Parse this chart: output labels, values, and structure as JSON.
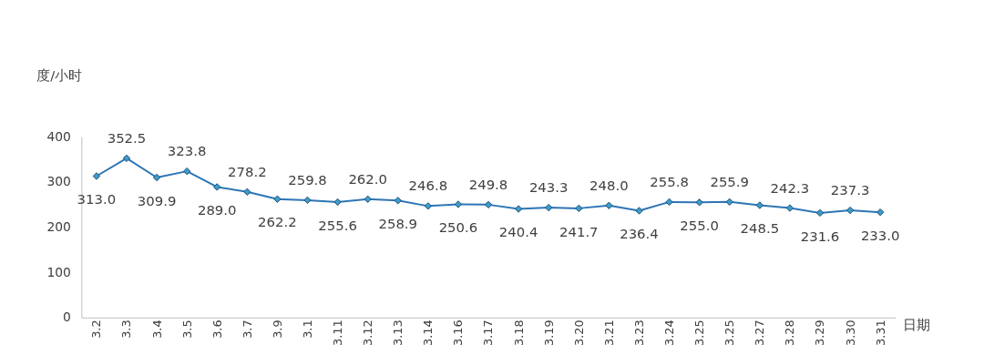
{
  "chart_data": {
    "type": "line",
    "ylabel": "度/小时",
    "xlabel": "日期",
    "categories": [
      "3.2",
      "3.3",
      "3.4",
      "3.5",
      "3.6",
      "3.7",
      "3.9",
      "3.1",
      "3.11",
      "3.12",
      "3.13",
      "3.14",
      "3.16",
      "3.17",
      "3.18",
      "3.19",
      "3.20",
      "3.21",
      "3.23",
      "3.24",
      "3.25",
      "3.25",
      "3.27",
      "3.28",
      "3.29",
      "3.30",
      "3.31"
    ],
    "series": [
      {
        "color": "#2e75b6",
        "values": [
          313.0,
          352.5,
          309.9,
          323.8,
          289.0,
          278.2,
          262.2,
          259.8,
          255.6,
          262.0,
          258.9,
          246.8,
          250.6,
          249.8,
          240.4,
          243.3,
          241.7,
          248.0,
          236.4,
          255.8,
          255.0,
          255.9,
          248.5,
          242.3,
          231.6,
          237.3,
          233.0
        ]
      }
    ],
    "value_labels": [
      "313.0",
      "352.5",
      "309.9",
      "323.8",
      "289.0",
      "278.2",
      "262.2",
      "259.8",
      "255.6",
      "262.0",
      "258.9",
      "246.8",
      "250.6",
      "249.8",
      "240.4",
      "243.3",
      "241.7",
      "248.0",
      "236.4",
      "255.8",
      "255.0",
      "255.9",
      "248.5",
      "242.3",
      "231.6",
      "237.3",
      "233.0"
    ],
    "ylim": [
      0,
      400
    ],
    "yticks": [
      0,
      100,
      200,
      300,
      400
    ],
    "grid": false,
    "marker": "diamond",
    "line_style": "solid"
  }
}
